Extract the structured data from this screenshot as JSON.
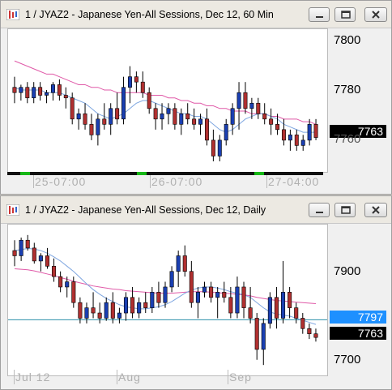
{
  "colors": {
    "up_candle": "#1a3fb2",
    "down_candle": "#b03030",
    "ma_pink": "#e05aa8",
    "ma_blue": "#7ea6e0",
    "hline": "#2a8fa8",
    "session_green": "#16b816"
  },
  "window1": {
    "title": "1 / JYAZ2 - Japanese Yen-All Sessions, Dec 12, 60 Min",
    "icon": "chart-window-icon",
    "buttons": {
      "minimize": "minimize-icon",
      "maximize": "maximize-icon",
      "close": "close-icon"
    },
    "y_ticks": [
      "7800",
      "7780",
      "7760"
    ],
    "last_price": "7763",
    "x_labels": [
      "25-07:00",
      "26-07:00",
      "27-04:00"
    ],
    "chart_data": {
      "type": "candlestick",
      "ylim": [
        7750,
        7804
      ],
      "y_ticks": [
        7800,
        7780,
        7760
      ],
      "x_tick_labels": [
        "25-07:00",
        "26-07:00",
        "27-04:00"
      ],
      "last_price": 7763,
      "candles": [
        [
          7782,
          7786,
          7776,
          7780
        ],
        [
          7780,
          7783,
          7777,
          7782
        ],
        [
          7782,
          7784,
          7776,
          7778
        ],
        [
          7778,
          7784,
          7776,
          7782
        ],
        [
          7782,
          7784,
          7777,
          7779
        ],
        [
          7779,
          7781,
          7776,
          7780
        ],
        [
          7780,
          7784,
          7777,
          7783
        ],
        [
          7783,
          7785,
          7777,
          7779
        ],
        [
          7779,
          7782,
          7774,
          7778
        ],
        [
          7778,
          7780,
          7768,
          7770
        ],
        [
          7770,
          7774,
          7766,
          7772
        ],
        [
          7772,
          7776,
          7766,
          7768
        ],
        [
          7768,
          7772,
          7762,
          7764
        ],
        [
          7764,
          7772,
          7760,
          7770
        ],
        [
          7770,
          7776,
          7766,
          7768
        ],
        [
          7768,
          7776,
          7764,
          7774
        ],
        [
          7774,
          7780,
          7768,
          7770
        ],
        [
          7770,
          7786,
          7768,
          7782
        ],
        [
          7782,
          7790,
          7776,
          7786
        ],
        [
          7786,
          7788,
          7780,
          7784
        ],
        [
          7784,
          7788,
          7778,
          7780
        ],
        [
          7780,
          7782,
          7772,
          7774
        ],
        [
          7774,
          7776,
          7766,
          7770
        ],
        [
          7770,
          7776,
          7766,
          7772
        ],
        [
          7772,
          7776,
          7768,
          7774
        ],
        [
          7774,
          7776,
          7766,
          7768
        ],
        [
          7768,
          7774,
          7764,
          7772
        ],
        [
          7772,
          7776,
          7768,
          7770
        ],
        [
          7770,
          7774,
          7766,
          7768
        ],
        [
          7768,
          7772,
          7764,
          7770
        ],
        [
          7770,
          7774,
          7760,
          7762
        ],
        [
          7762,
          7766,
          7754,
          7756
        ],
        [
          7756,
          7764,
          7754,
          7762
        ],
        [
          7762,
          7770,
          7760,
          7768
        ],
        [
          7768,
          7776,
          7764,
          7774
        ],
        [
          7774,
          7784,
          7766,
          7780
        ],
        [
          7780,
          7784,
          7772,
          7774
        ],
        [
          7774,
          7778,
          7770,
          7776
        ],
        [
          7776,
          7778,
          7770,
          7772
        ],
        [
          7772,
          7776,
          7768,
          7770
        ],
        [
          7770,
          7774,
          7764,
          7768
        ],
        [
          7768,
          7772,
          7764,
          7766
        ],
        [
          7766,
          7770,
          7760,
          7762
        ],
        [
          7762,
          7766,
          7758,
          7764
        ],
        [
          7764,
          7766,
          7758,
          7760
        ],
        [
          7760,
          7764,
          7758,
          7762
        ],
        [
          7762,
          7770,
          7760,
          7768
        ],
        [
          7768,
          7770,
          7762,
          7763
        ]
      ],
      "ma_slow": [
        7792,
        7791,
        7790,
        7789,
        7788,
        7787,
        7787,
        7786,
        7785,
        7784,
        7783,
        7783,
        7782,
        7782,
        7781,
        7781,
        7780,
        7780,
        7780,
        7780,
        7780,
        7779,
        7779,
        7779,
        7778,
        7778,
        7777,
        7777,
        7776,
        7776,
        7775,
        7775,
        7774,
        7774,
        7773,
        7773,
        7773,
        7772,
        7772,
        7772,
        7771,
        7771,
        7770,
        7770,
        7770,
        7769,
        7769,
        7768
      ],
      "ma_fast": [
        7782,
        7781,
        7781,
        7781,
        7781,
        7780,
        7780,
        7780,
        7779,
        7778,
        7777,
        7776,
        7774,
        7772,
        7771,
        7770,
        7771,
        7772,
        7774,
        7776,
        7777,
        7777,
        7776,
        7775,
        7774,
        7773,
        7772,
        7772,
        7771,
        7771,
        7770,
        7768,
        7766,
        7765,
        7766,
        7768,
        7770,
        7771,
        7772,
        7772,
        7771,
        7770,
        7768,
        7767,
        7766,
        7765,
        7765,
        7765
      ]
    }
  },
  "window2": {
    "title": "1 / JYAZ2 - Japanese Yen-All Sessions, Dec 12, Daily",
    "icon": "chart-window-icon",
    "buttons": {
      "minimize": "minimize-icon",
      "maximize": "maximize-icon",
      "close": "close-icon"
    },
    "y_ticks": [
      "7900",
      "7800",
      "7700"
    ],
    "hline_price": "7797",
    "last_price": "7763",
    "x_labels": [
      "Jul 12",
      "Aug",
      "Sep"
    ],
    "chart_data": {
      "type": "candlestick",
      "ylim": [
        7690,
        7980
      ],
      "y_ticks": [
        7900,
        7800,
        7700
      ],
      "x_tick_labels": [
        "Jul 12",
        "Aug",
        "Sep"
      ],
      "hline": 7797,
      "last_price": 7763,
      "candles": [
        [
          7930,
          7950,
          7900,
          7920
        ],
        [
          7920,
          7955,
          7910,
          7950
        ],
        [
          7950,
          7960,
          7930,
          7935
        ],
        [
          7935,
          7945,
          7905,
          7910
        ],
        [
          7910,
          7925,
          7890,
          7920
        ],
        [
          7920,
          7935,
          7895,
          7900
        ],
        [
          7900,
          7915,
          7870,
          7880
        ],
        [
          7880,
          7890,
          7850,
          7860
        ],
        [
          7860,
          7880,
          7840,
          7870
        ],
        [
          7870,
          7880,
          7820,
          7830
        ],
        [
          7830,
          7840,
          7790,
          7800
        ],
        [
          7800,
          7830,
          7790,
          7820
        ],
        [
          7820,
          7850,
          7800,
          7810
        ],
        [
          7810,
          7830,
          7790,
          7800
        ],
        [
          7800,
          7840,
          7795,
          7830
        ],
        [
          7830,
          7850,
          7790,
          7800
        ],
        [
          7800,
          7820,
          7790,
          7810
        ],
        [
          7810,
          7850,
          7795,
          7840
        ],
        [
          7840,
          7860,
          7800,
          7810
        ],
        [
          7810,
          7840,
          7800,
          7830
        ],
        [
          7830,
          7850,
          7810,
          7820
        ],
        [
          7820,
          7860,
          7810,
          7850
        ],
        [
          7850,
          7870,
          7820,
          7830
        ],
        [
          7830,
          7870,
          7820,
          7860
        ],
        [
          7860,
          7900,
          7850,
          7890
        ],
        [
          7890,
          7930,
          7860,
          7920
        ],
        [
          7920,
          7940,
          7880,
          7890
        ],
        [
          7890,
          7910,
          7820,
          7830
        ],
        [
          7830,
          7860,
          7800,
          7850
        ],
        [
          7850,
          7870,
          7840,
          7860
        ],
        [
          7860,
          7870,
          7830,
          7840
        ],
        [
          7840,
          7860,
          7800,
          7850
        ],
        [
          7850,
          7870,
          7830,
          7840
        ],
        [
          7840,
          7860,
          7800,
          7810
        ],
        [
          7810,
          7880,
          7800,
          7860
        ],
        [
          7860,
          7870,
          7800,
          7820
        ],
        [
          7820,
          7860,
          7790,
          7800
        ],
        [
          7800,
          7810,
          7720,
          7740
        ],
        [
          7740,
          7800,
          7710,
          7790
        ],
        [
          7790,
          7850,
          7780,
          7840
        ],
        [
          7840,
          7860,
          7780,
          7800
        ],
        [
          7800,
          7910,
          7790,
          7850
        ],
        [
          7850,
          7860,
          7800,
          7820
        ],
        [
          7820,
          7830,
          7790,
          7800
        ],
        [
          7800,
          7810,
          7770,
          7780
        ],
        [
          7780,
          7790,
          7760,
          7770
        ],
        [
          7770,
          7780,
          7755,
          7763
        ]
      ],
      "ma_slow": [
        7895,
        7894,
        7893,
        7891,
        7888,
        7885,
        7882,
        7878,
        7875,
        7871,
        7868,
        7865,
        7862,
        7860,
        7858,
        7856,
        7855,
        7853,
        7852,
        7851,
        7850,
        7849,
        7848,
        7848,
        7848,
        7849,
        7850,
        7851,
        7851,
        7851,
        7850,
        7849,
        7848,
        7847,
        7846,
        7845,
        7843,
        7840,
        7838,
        7836,
        7834,
        7833,
        7832,
        7831,
        7830,
        7829,
        7828
      ],
      "ma_fast": [
        7930,
        7932,
        7934,
        7933,
        7930,
        7925,
        7918,
        7910,
        7900,
        7890,
        7878,
        7866,
        7855,
        7846,
        7838,
        7832,
        7826,
        7822,
        7820,
        7818,
        7818,
        7820,
        7822,
        7826,
        7832,
        7840,
        7848,
        7854,
        7858,
        7860,
        7860,
        7858,
        7855,
        7851,
        7848,
        7845,
        7840,
        7830,
        7820,
        7812,
        7808,
        7806,
        7804,
        7800,
        7796,
        7792,
        7788
      ]
    }
  }
}
